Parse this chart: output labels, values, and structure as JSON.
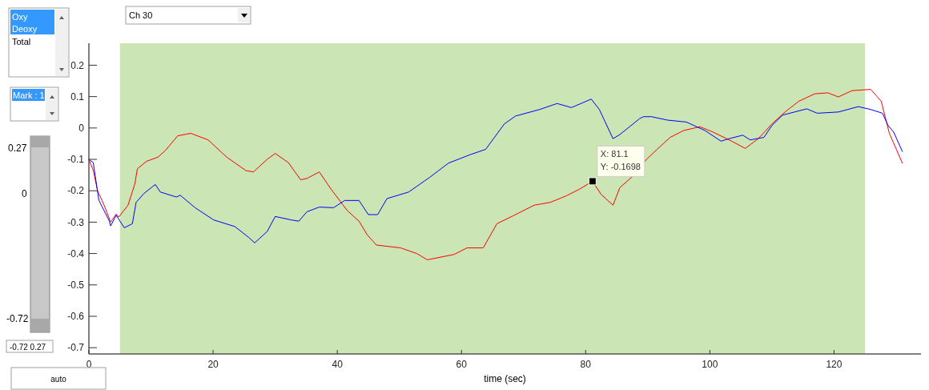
{
  "chart_data": {
    "type": "line",
    "xlabel": "time (sec)",
    "xlim": [
      0,
      134
    ],
    "xticks": [
      0,
      20,
      40,
      60,
      80,
      100,
      120
    ],
    "ylim": [
      -0.72,
      0.27
    ],
    "yticks": [
      0.2,
      0.1,
      0,
      -0.1,
      -0.2,
      -0.3,
      -0.4,
      -0.5,
      -0.6,
      -0.7
    ],
    "grid": false,
    "line_style": "solid",
    "marker": "none",
    "bands": [
      {
        "axis": "x",
        "from": 5,
        "to": 125,
        "color": "#cce5b4"
      }
    ],
    "series": [
      {
        "color": "#ff0000",
        "x": [
          0,
          0.7,
          1.4,
          2.45,
          3.5,
          4.4,
          4.8,
          6.3,
          7.4,
          7.8,
          9.3,
          11.1,
          12.3,
          14.3,
          16.4,
          19.2,
          22.2,
          25.3,
          26.5,
          28.7,
          30,
          32.1,
          34.1,
          35.1,
          37.1,
          39,
          41.6,
          43.5,
          44.8,
          46.3,
          50.2,
          52.8,
          54.5,
          58.8,
          60.9,
          63.5,
          65.7,
          68.3,
          71.7,
          74.3,
          76.9,
          79,
          81.1,
          82.5,
          84.4,
          85.5,
          87.4,
          89.8,
          91.5,
          93.6,
          95.8,
          98.4,
          100.5,
          103.5,
          105.7,
          107.8,
          110,
          112.1,
          114.3,
          116.9,
          119,
          120.7,
          122.9,
          125.9,
          127.6,
          128.9,
          131
        ],
        "values": [
          -0.1,
          -0.135,
          -0.2,
          -0.246,
          -0.3,
          -0.274,
          -0.284,
          -0.246,
          -0.178,
          -0.13,
          -0.106,
          -0.093,
          -0.072,
          -0.025,
          -0.017,
          -0.038,
          -0.093,
          -0.136,
          -0.14,
          -0.1,
          -0.081,
          -0.11,
          -0.165,
          -0.161,
          -0.14,
          -0.195,
          -0.263,
          -0.297,
          -0.34,
          -0.373,
          -0.382,
          -0.4,
          -0.42,
          -0.403,
          -0.382,
          -0.382,
          -0.305,
          -0.28,
          -0.246,
          -0.237,
          -0.216,
          -0.195,
          -0.17,
          -0.212,
          -0.246,
          -0.19,
          -0.157,
          -0.1,
          -0.068,
          -0.03,
          -0.008,
          0.004,
          -0.013,
          -0.042,
          -0.065,
          -0.034,
          0.013,
          0.051,
          0.085,
          0.109,
          0.112,
          0.099,
          0.119,
          0.123,
          0.085,
          -0.017,
          -0.112
        ]
      },
      {
        "color": "#0000ff",
        "x": [
          0,
          0.7,
          1.6,
          3.3,
          3.5,
          4.4,
          5.7,
          7,
          7.6,
          8.9,
          10.7,
          11.5,
          14.1,
          14.7,
          17.1,
          20.1,
          23.5,
          25.7,
          26.7,
          28.7,
          30,
          32.6,
          33.8,
          35.1,
          37.1,
          39.4,
          41.2,
          43.5,
          45,
          46.5,
          48,
          51.5,
          54.9,
          57.9,
          61.4,
          63.9,
          66.9,
          68.7,
          72.6,
          75.4,
          77.7,
          80.9,
          82.2,
          84.4,
          85.5,
          88.7,
          89.3,
          90.6,
          93.2,
          96.2,
          99.2,
          101.8,
          103.1,
          105.3,
          106.5,
          108.7,
          110,
          111.7,
          115.6,
          117.3,
          120.7,
          123.9,
          125.9,
          127.8,
          128.7,
          129.6,
          131
        ],
        "values": [
          -0.1,
          -0.11,
          -0.23,
          -0.297,
          -0.312,
          -0.278,
          -0.318,
          -0.305,
          -0.237,
          -0.208,
          -0.18,
          -0.204,
          -0.22,
          -0.214,
          -0.254,
          -0.293,
          -0.314,
          -0.348,
          -0.366,
          -0.33,
          -0.282,
          -0.293,
          -0.297,
          -0.267,
          -0.252,
          -0.254,
          -0.231,
          -0.231,
          -0.276,
          -0.276,
          -0.225,
          -0.204,
          -0.157,
          -0.112,
          -0.085,
          -0.068,
          0.013,
          0.038,
          0.059,
          0.078,
          0.065,
          0.092,
          0.059,
          -0.034,
          -0.021,
          0.03,
          0.036,
          0.036,
          0.025,
          0.019,
          -0.008,
          -0.042,
          -0.034,
          -0.023,
          -0.038,
          -0.03,
          0.008,
          0.041,
          0.061,
          0.047,
          0.051,
          0.068,
          0.059,
          0.047,
          0.008,
          -0.013,
          -0.075
        ]
      }
    ],
    "annotations": [
      {
        "text": "X: 81.1\nY: -0.1698",
        "x": 81.1,
        "y": -0.1698
      },
      "Oxy",
      "Deoxy",
      "Total",
      "Ch 30",
      "Mark : 1",
      "0.27",
      "0",
      "-0.72",
      "-0.72 0.27",
      "auto"
    ]
  }
}
